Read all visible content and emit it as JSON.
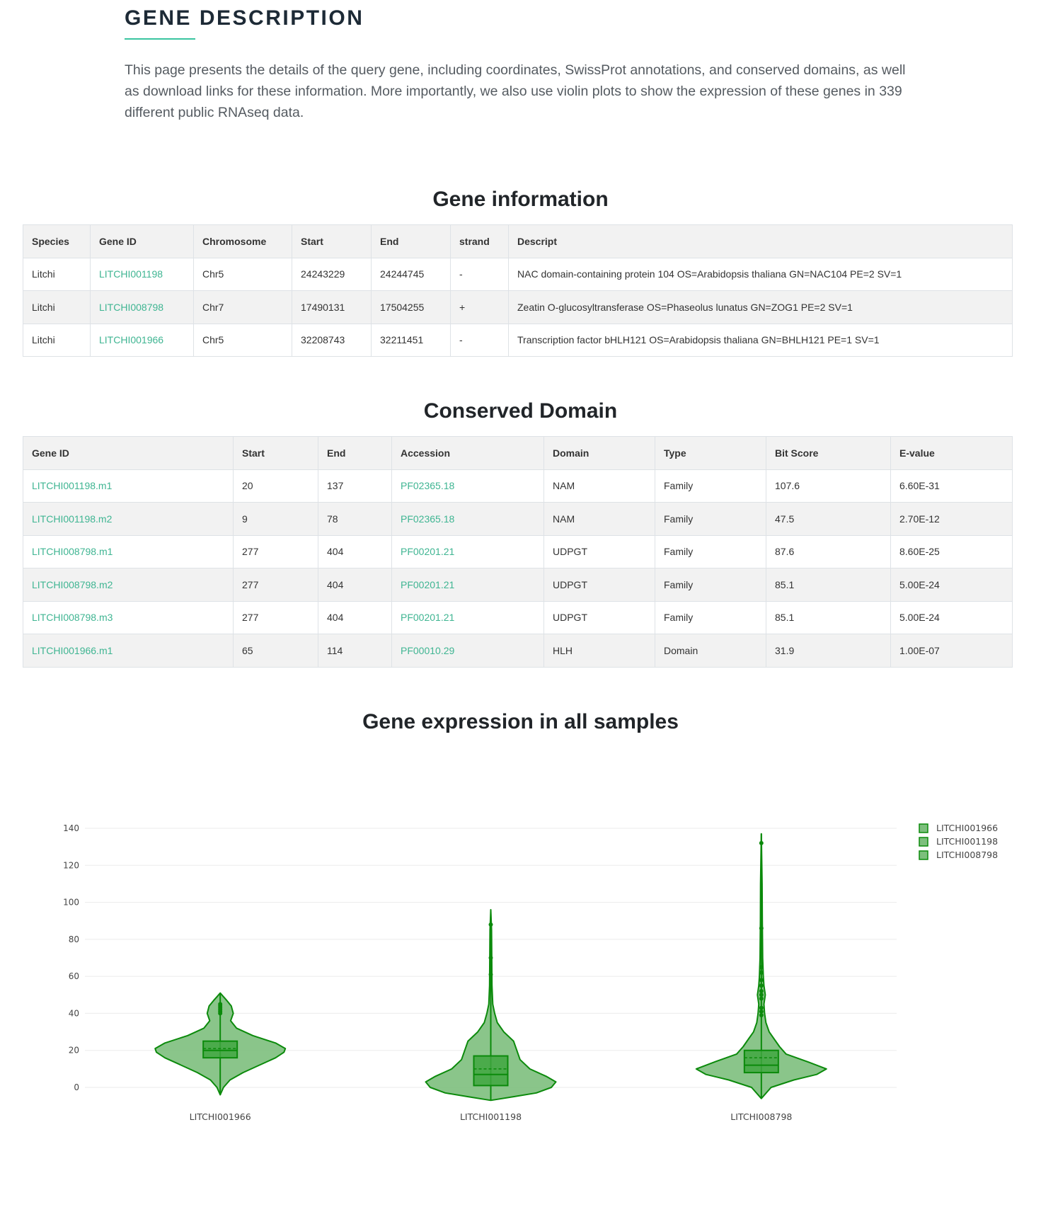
{
  "intro": {
    "heading": "GENE DESCRIPTION",
    "text": "This page presents the details of the query gene, including coordinates, SwissProt annotations, and conserved domains, as well as download links for these information. More importantly, we also use violin plots to show the expression of these genes in 339 different public RNAseq data."
  },
  "gene_info": {
    "title": "Gene information",
    "headers": [
      "Species",
      "Gene ID",
      "Chromosome",
      "Start",
      "End",
      "strand",
      "Descript"
    ],
    "rows": [
      [
        "Litchi",
        "LITCHI001198",
        "Chr5",
        "24243229",
        "24244745",
        "-",
        "NAC domain-containing protein 104 OS=Arabidopsis thaliana GN=NAC104 PE=2 SV=1"
      ],
      [
        "Litchi",
        "LITCHI008798",
        "Chr7",
        "17490131",
        "17504255",
        "+",
        "Zeatin O-glucosyltransferase OS=Phaseolus lunatus GN=ZOG1 PE=2 SV=1"
      ],
      [
        "Litchi",
        "LITCHI001966",
        "Chr5",
        "32208743",
        "32211451",
        "-",
        "Transcription factor bHLH121 OS=Arabidopsis thaliana GN=BHLH121 PE=1 SV=1"
      ]
    ]
  },
  "conserved_domain": {
    "title": "Conserved Domain",
    "headers": [
      "Gene ID",
      "Start",
      "End",
      "Accession",
      "Domain",
      "Type",
      "Bit Score",
      "E-value"
    ],
    "rows": [
      [
        "LITCHI001198.m1",
        "20",
        "137",
        "PF02365.18",
        "NAM",
        "Family",
        "107.6",
        "6.60E-31"
      ],
      [
        "LITCHI001198.m2",
        "9",
        "78",
        "PF02365.18",
        "NAM",
        "Family",
        "47.5",
        "2.70E-12"
      ],
      [
        "LITCHI008798.m1",
        "277",
        "404",
        "PF00201.21",
        "UDPGT",
        "Family",
        "87.6",
        "8.60E-25"
      ],
      [
        "LITCHI008798.m2",
        "277",
        "404",
        "PF00201.21",
        "UDPGT",
        "Family",
        "85.1",
        "5.00E-24"
      ],
      [
        "LITCHI008798.m3",
        "277",
        "404",
        "PF00201.21",
        "UDPGT",
        "Family",
        "85.1",
        "5.00E-24"
      ],
      [
        "LITCHI001966.m1",
        "65",
        "114",
        "PF00010.29",
        "HLH",
        "Domain",
        "31.9",
        "1.00E-07"
      ]
    ]
  },
  "expression": {
    "title": "Gene expression in all samples"
  },
  "colors": {
    "accent": "#3ac4a0",
    "link": "#3fb592",
    "violin_fill": "#7dbf7d",
    "violin_line": "#0b8a0b"
  },
  "chart_data": {
    "type": "violin",
    "ylim": [
      0,
      140
    ],
    "yticks": [
      "0",
      "20",
      "40",
      "60",
      "80",
      "100",
      "120",
      "140"
    ],
    "grid": true,
    "legend_position": "top-right",
    "categories": [
      "LITCHI001966",
      "LITCHI001198",
      "LITCHI008798"
    ],
    "series": [
      {
        "name": "LITCHI001966",
        "min": -4,
        "max": 51,
        "q1": 16,
        "median": 20,
        "mean": 21,
        "q3": 25,
        "whisker_low": 3,
        "whisker_high": 38,
        "outliers": [
          40,
          41,
          42,
          43,
          44,
          45
        ],
        "density": [
          [
            -4,
            0
          ],
          [
            0,
            0.05
          ],
          [
            4,
            0.15
          ],
          [
            8,
            0.35
          ],
          [
            12,
            0.6
          ],
          [
            16,
            0.85
          ],
          [
            19,
            0.98
          ],
          [
            21,
            1.0
          ],
          [
            24,
            0.85
          ],
          [
            28,
            0.5
          ],
          [
            32,
            0.25
          ],
          [
            36,
            0.16
          ],
          [
            40,
            0.2
          ],
          [
            44,
            0.17
          ],
          [
            47,
            0.1
          ],
          [
            49,
            0.05
          ],
          [
            51,
            0
          ]
        ]
      },
      {
        "name": "LITCHI001198",
        "min": -7,
        "max": 96,
        "q1": 1,
        "median": 7,
        "mean": 10,
        "q3": 17,
        "whisker_low": -1,
        "whisker_high": 41,
        "outliers": [
          61,
          70,
          88
        ],
        "density": [
          [
            -7,
            0
          ],
          [
            -5,
            0.35
          ],
          [
            -3,
            0.7
          ],
          [
            0,
            0.93
          ],
          [
            3,
            1.0
          ],
          [
            6,
            0.85
          ],
          [
            10,
            0.6
          ],
          [
            15,
            0.45
          ],
          [
            20,
            0.4
          ],
          [
            25,
            0.35
          ],
          [
            30,
            0.2
          ],
          [
            35,
            0.1
          ],
          [
            40,
            0.06
          ],
          [
            45,
            0.03
          ],
          [
            55,
            0.018
          ],
          [
            70,
            0.015
          ],
          [
            85,
            0.012
          ],
          [
            96,
            0
          ]
        ]
      },
      {
        "name": "LITCHI008798",
        "min": -6,
        "max": 137,
        "q1": 8,
        "median": 12,
        "mean": 16,
        "q3": 20,
        "whisker_low": 2,
        "whisker_high": 35,
        "outliers": [
          39,
          41,
          43,
          48,
          50,
          52,
          55,
          58,
          62,
          65,
          86,
          132
        ],
        "density": [
          [
            -6,
            0
          ],
          [
            0,
            0.15
          ],
          [
            4,
            0.5
          ],
          [
            7,
            0.85
          ],
          [
            10,
            1.0
          ],
          [
            14,
            0.7
          ],
          [
            18,
            0.38
          ],
          [
            22,
            0.28
          ],
          [
            26,
            0.2
          ],
          [
            30,
            0.12
          ],
          [
            35,
            0.07
          ],
          [
            40,
            0.05
          ],
          [
            45,
            0.04
          ],
          [
            50,
            0.06
          ],
          [
            55,
            0.04
          ],
          [
            60,
            0.03
          ],
          [
            70,
            0.02
          ],
          [
            90,
            0.015
          ],
          [
            110,
            0.012
          ],
          [
            137,
            0
          ]
        ]
      }
    ]
  }
}
